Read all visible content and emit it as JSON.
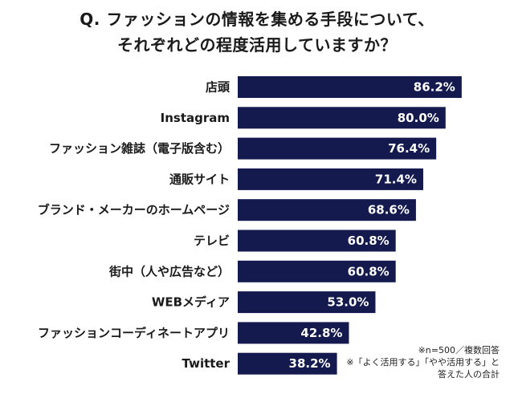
{
  "title": {
    "line1": "Q. ファッションの情報を集める手段について、",
    "line2": "それぞれどの程度活用していますか？"
  },
  "notes": {
    "line1": "※n=500／複数回答",
    "line2": "※「よく活用する」「やや活用する」と",
    "line3": "答えた人の合計"
  },
  "colors": {
    "bar": "#141a4e",
    "bar_text": "#ffffff",
    "label_text": "#1a1a1a"
  },
  "chart_data": {
    "type": "bar",
    "orientation": "horizontal",
    "title": "Q. ファッションの情報を集める手段について、それぞれどの程度活用していますか？",
    "unit": "%",
    "xlabel": "",
    "ylabel": "",
    "xlim": [
      0,
      100
    ],
    "grid": false,
    "categories": [
      "店頭",
      "Instagram",
      "ファッション雑誌（電子版含む）",
      "通販サイト",
      "ブランド・メーカーのホームページ",
      "テレビ",
      "街中（人や広告など）",
      "WEBメディア",
      "ファッションコーディネートアプリ",
      "Twitter"
    ],
    "values": [
      86.2,
      80.0,
      76.4,
      71.4,
      68.6,
      60.8,
      60.8,
      53.0,
      42.8,
      38.2
    ],
    "value_labels": [
      "86.2%",
      "80.0%",
      "76.4%",
      "71.4%",
      "68.6%",
      "60.8%",
      "60.8%",
      "53.0%",
      "42.8%",
      "38.2%"
    ]
  }
}
